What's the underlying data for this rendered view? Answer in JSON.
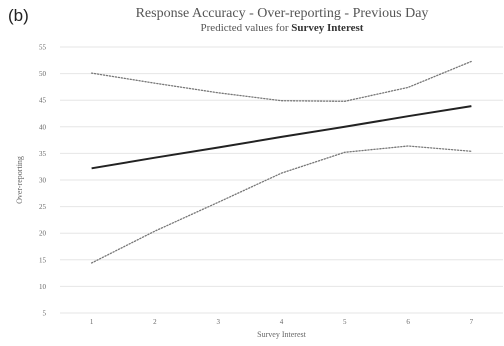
{
  "panel_label": "(b)",
  "chart_data": {
    "type": "line",
    "title": "Response Accuracy - Over-reporting - Previous Day",
    "subtitle_prefix": "Predicted values for ",
    "subtitle_bold": "Survey Interest",
    "xlabel": "Survey Interest",
    "ylabel": "Over-reporting",
    "x": [
      1,
      2,
      3,
      4,
      5,
      6,
      7
    ],
    "ylim": [
      5,
      55
    ],
    "yticks": [
      5,
      10,
      15,
      20,
      25,
      30,
      35,
      40,
      45,
      50,
      55
    ],
    "grid": true,
    "series": [
      {
        "style": "solid",
        "color": "#222222",
        "values": [
          32.2,
          34.2,
          36.1,
          38.1,
          40.0,
          42.0,
          43.9
        ]
      },
      {
        "style": "dotted",
        "color": "#777777",
        "values": [
          50.1,
          48.2,
          46.4,
          44.9,
          44.8,
          47.4,
          52.3
        ]
      },
      {
        "style": "dotted",
        "color": "#777777",
        "values": [
          14.4,
          20.4,
          25.8,
          31.3,
          35.2,
          36.4,
          35.4
        ]
      }
    ]
  }
}
